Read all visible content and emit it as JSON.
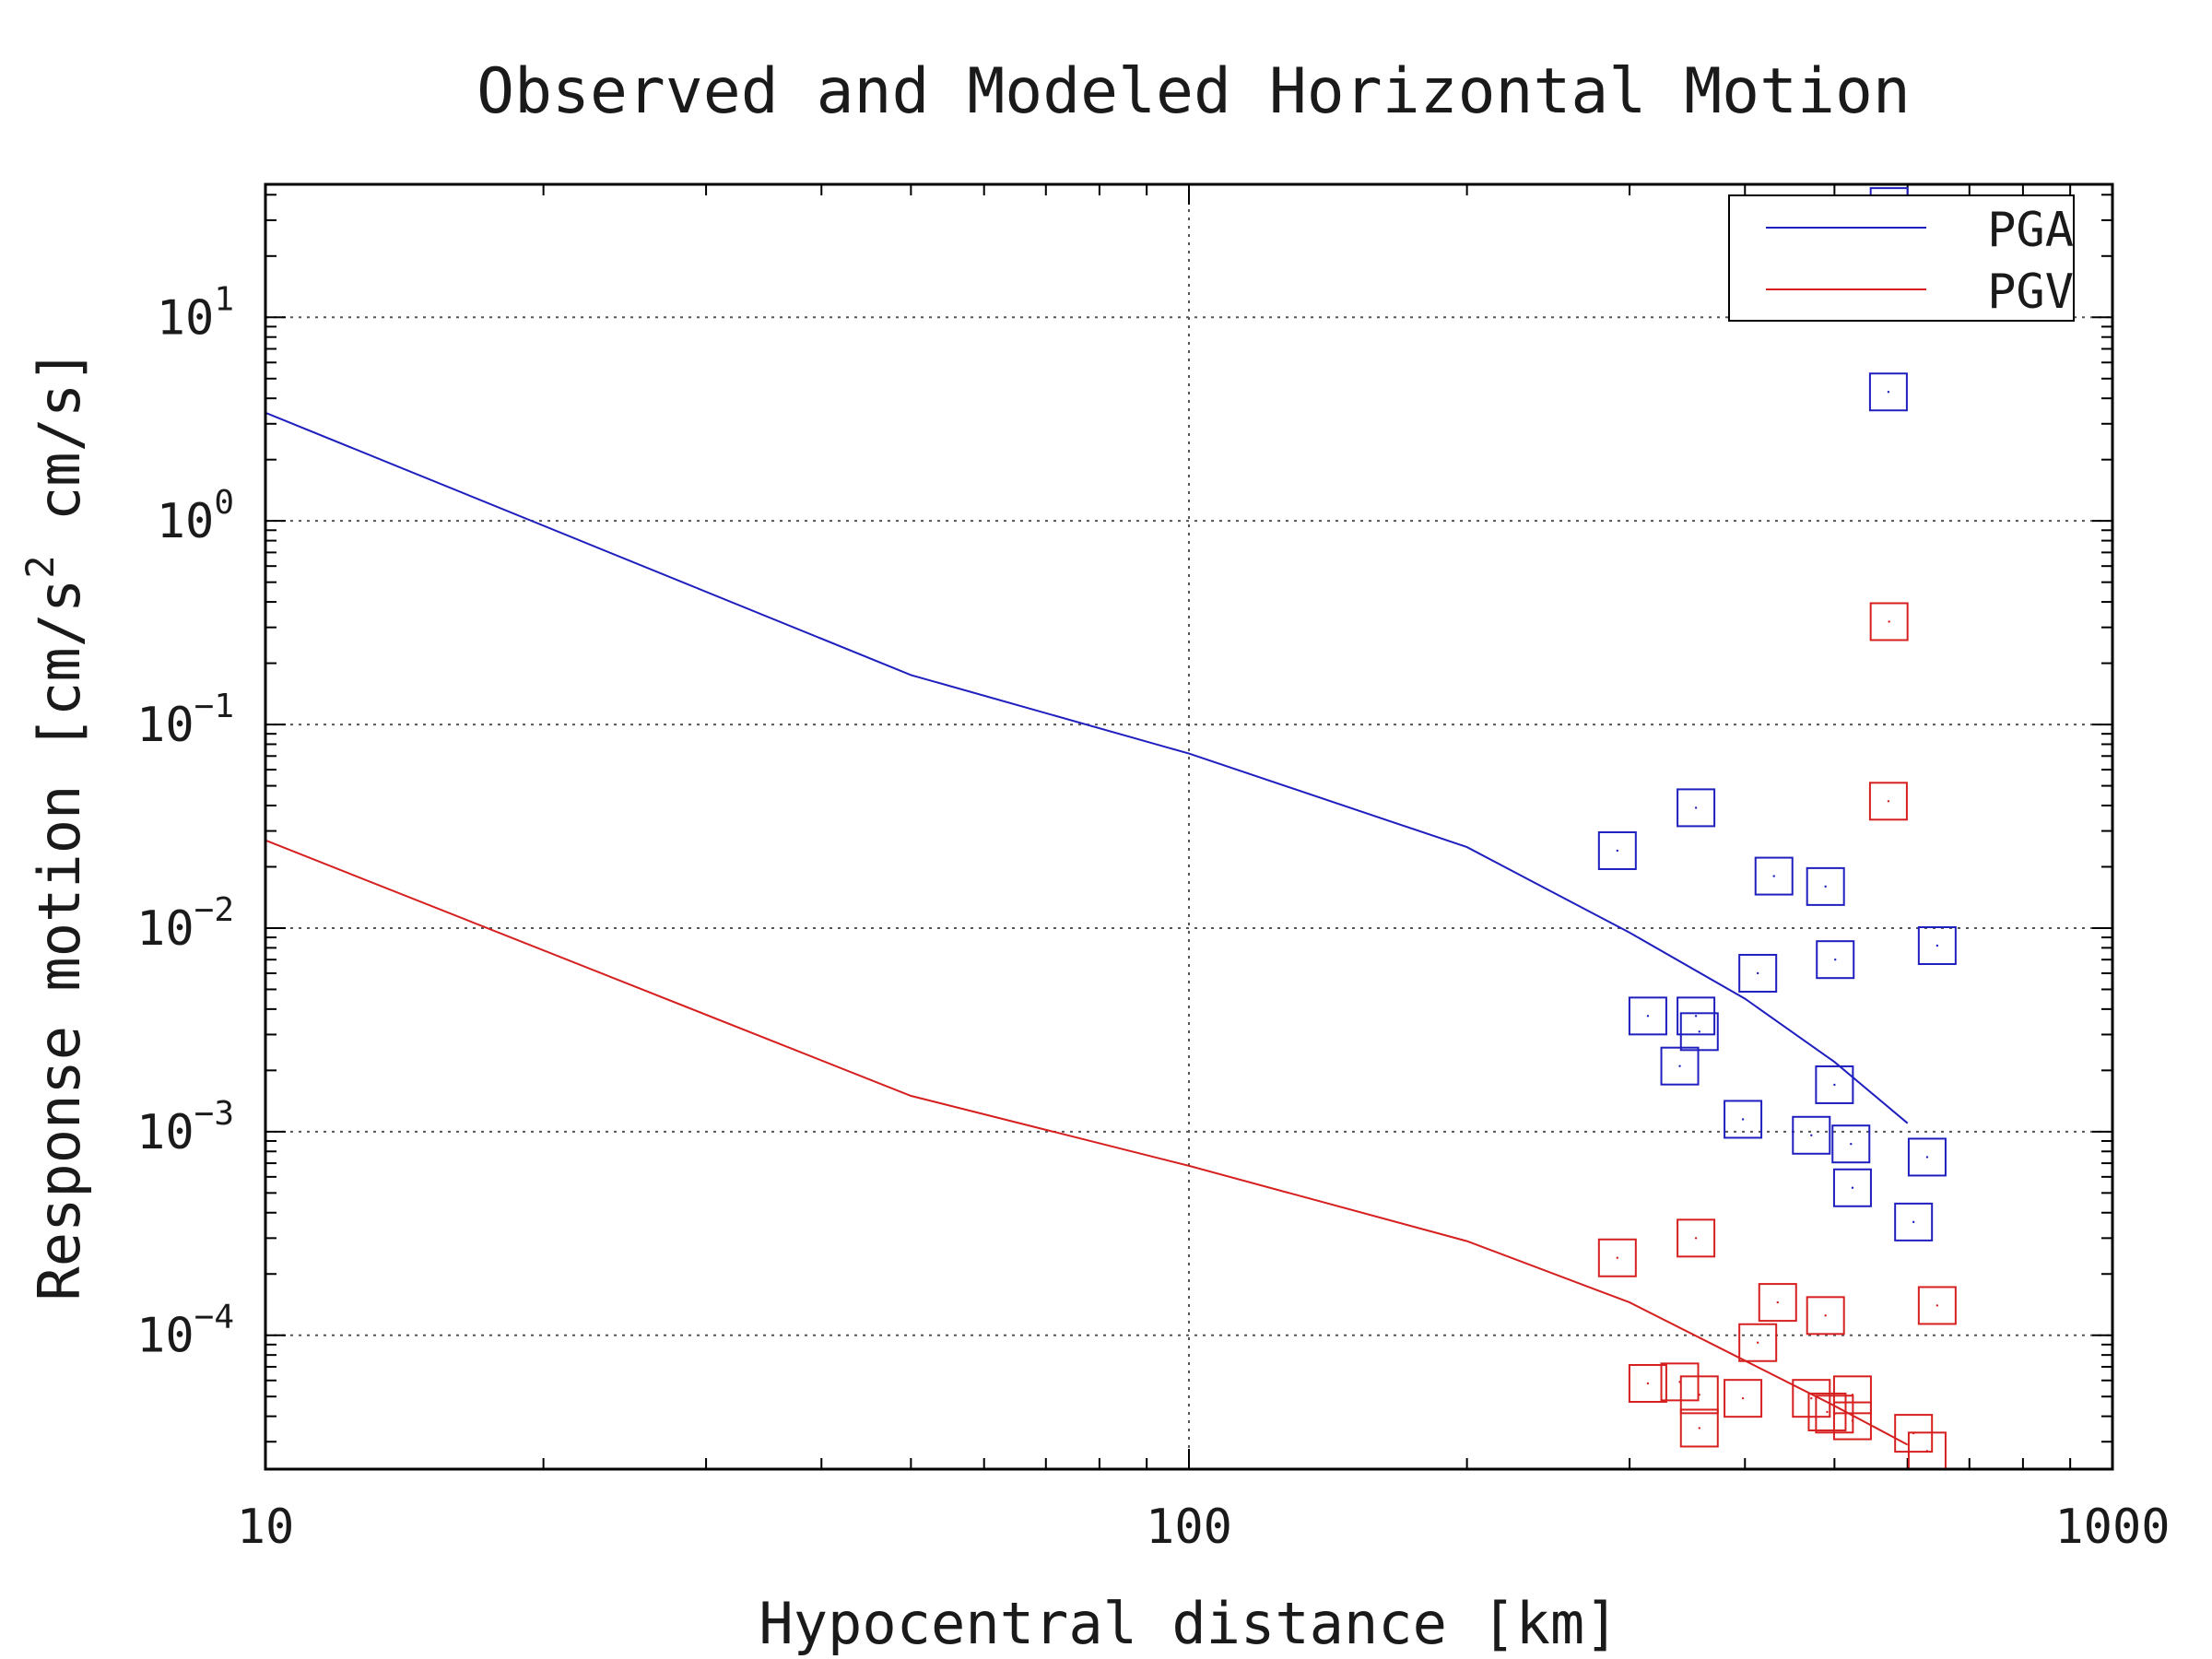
{
  "chart_data": {
    "type": "scatter",
    "title": "Observed and Modeled Horizontal Motion",
    "xlabel": "Hypocentral distance [km]",
    "ylabel": {
      "prefix": "Response motion [cm/s",
      "sup": "2",
      "suffix": " cm/s]"
    },
    "x_scale": "log",
    "y_scale": "log",
    "xlim": [
      10,
      1000
    ],
    "ylim": [
      2.2e-05,
      45
    ],
    "x_ticks": [
      {
        "value": 10,
        "label": "10"
      },
      {
        "value": 100,
        "label": "100"
      },
      {
        "value": 1000,
        "label": "1000"
      }
    ],
    "y_ticks": [
      {
        "value": 10,
        "base": "10",
        "exp": "1"
      },
      {
        "value": 1,
        "base": "10",
        "exp": "0"
      },
      {
        "value": 0.1,
        "base": "10",
        "exp": "−1"
      },
      {
        "value": 0.01,
        "base": "10",
        "exp": "−2"
      },
      {
        "value": 0.001,
        "base": "10",
        "exp": "−3"
      },
      {
        "value": 0.0001,
        "base": "10",
        "exp": "−4"
      }
    ],
    "grid": true,
    "legend": {
      "position": "top-right",
      "entries": [
        {
          "label": "PGA",
          "color": "#1f1fbf"
        },
        {
          "label": "PGV",
          "color": "#d62020"
        }
      ]
    },
    "series": [
      {
        "name": "PGA",
        "kind": "line",
        "color": "#1f1fbf",
        "x": [
          10,
          50,
          100,
          200,
          300,
          400,
          500,
          600
        ],
        "y": [
          3.4,
          0.175,
          0.072,
          0.025,
          0.0095,
          0.0045,
          0.0022,
          0.0011
        ]
      },
      {
        "name": "PGV",
        "kind": "line",
        "color": "#d62020",
        "x": [
          10,
          50,
          100,
          200,
          300,
          400,
          500,
          600
        ],
        "y": [
          0.027,
          0.0015,
          0.00068,
          0.00029,
          0.000145,
          7.5e-05,
          4.5e-05,
          2.9e-05
        ]
      },
      {
        "name": "PGA",
        "kind": "markers",
        "color": "#1f1fbf",
        "x": [
          291,
          354,
          430,
          489,
          413,
          501,
          314,
          354,
          357,
          340,
          398,
          500,
          472,
          521,
          646,
          630,
          523,
          609,
          572,
          573
        ],
        "y": [
          0.024,
          0.039,
          0.018,
          0.016,
          0.006,
          0.007,
          0.0037,
          0.0037,
          0.0031,
          0.0021,
          0.00115,
          0.0017,
          0.00096,
          0.00087,
          0.0082,
          0.00075,
          0.00053,
          0.00036,
          4.3,
          35
        ]
      },
      {
        "name": "PGV",
        "kind": "markers",
        "color": "#d62020",
        "x": [
          291,
          354,
          572,
          434,
          489,
          413,
          646,
          314,
          340,
          357,
          357,
          398,
          472,
          491,
          500,
          523,
          523,
          609,
          630,
          573
        ],
        "y": [
          0.00024,
          0.0003,
          0.042,
          0.000145,
          0.000125,
          9.2e-05,
          0.00014,
          5.8e-05,
          5.9e-05,
          5.1e-05,
          3.5e-05,
          4.9e-05,
          4.9e-05,
          4.2e-05,
          4.1e-05,
          5.1e-05,
          3.8e-05,
          3.3e-05,
          2.7e-05,
          0.32
        ]
      }
    ]
  }
}
